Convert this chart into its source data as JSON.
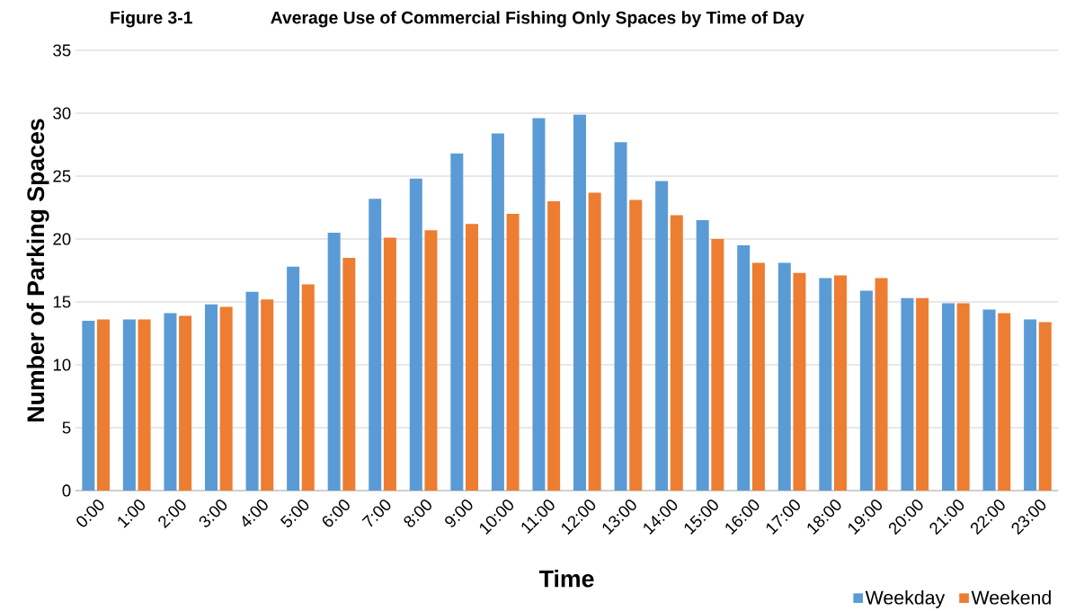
{
  "chart_data": {
    "type": "bar",
    "title": "Average Use of Commercial Fishing Only Spaces by Time of Day",
    "annotations": [
      "Figure 3-1"
    ],
    "xlabel": "Time",
    "ylabel": "Number of Parking Spaces",
    "categories": [
      "0:00",
      "1:00",
      "2:00",
      "3:00",
      "4:00",
      "5:00",
      "6:00",
      "7:00",
      "8:00",
      "9:00",
      "10:00",
      "11:00",
      "12:00",
      "13:00",
      "14:00",
      "15:00",
      "16:00",
      "17:00",
      "18:00",
      "19:00",
      "20:00",
      "21:00",
      "22:00",
      "23:00"
    ],
    "series": [
      {
        "name": "Weekday",
        "color": "#5b9bd5",
        "values": [
          13.5,
          13.6,
          14.1,
          14.8,
          15.8,
          17.8,
          20.5,
          23.2,
          24.8,
          26.8,
          28.4,
          29.6,
          29.9,
          27.7,
          24.6,
          21.5,
          19.5,
          18.1,
          16.9,
          15.9,
          15.3,
          14.9,
          14.4,
          13.6
        ]
      },
      {
        "name": "Weekend",
        "color": "#ed7d31",
        "values": [
          13.6,
          13.6,
          13.9,
          14.6,
          15.2,
          16.4,
          18.5,
          20.1,
          20.7,
          21.2,
          22.0,
          23.0,
          23.7,
          23.1,
          21.9,
          20.0,
          18.1,
          17.3,
          17.1,
          16.9,
          15.3,
          14.9,
          14.1,
          13.4
        ]
      }
    ],
    "ylim": [
      0,
      35
    ],
    "yticks": [
      0,
      5,
      10,
      15,
      20,
      25,
      30,
      35
    ],
    "grid": "y",
    "legend": "bottom right"
  }
}
